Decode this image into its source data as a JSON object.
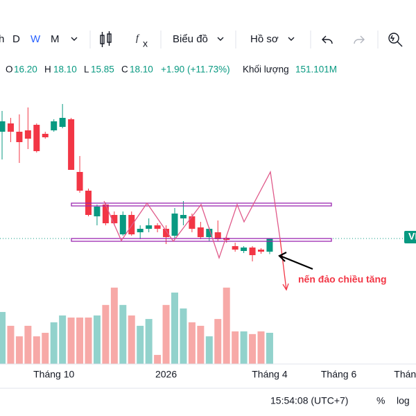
{
  "toolbar": {
    "intervals": [
      "h",
      "D",
      "W",
      "M"
    ],
    "chart_menu": "Biểu đồ",
    "profile_menu": "Hồ sơ"
  },
  "legend": {
    "open_label": "O",
    "open": "16.20",
    "high_label": "H",
    "high": "18.10",
    "low_label": "L",
    "low": "15.85",
    "close_label": "C",
    "close": "18.10",
    "change": "+1.90",
    "change_pct": "(+11.73%)",
    "volume_label": "Khối lượng",
    "volume": "151.101M"
  },
  "annotation": "nến đảo chiều tăng",
  "price_tag": "VI",
  "status_bar": {
    "time": "15:54:08 (UTC+7)",
    "percent": "%",
    "log": "log"
  },
  "chart_data": {
    "type": "candlestick",
    "categories": [
      null,
      null,
      null,
      null,
      null,
      null,
      "Tháng 10",
      null,
      null,
      null,
      null,
      null,
      null,
      null,
      null,
      null,
      null,
      null,
      null,
      "2026",
      null,
      null,
      null,
      null,
      null,
      null,
      null,
      null,
      null,
      null,
      null,
      "Tháng 4",
      null,
      null,
      null,
      null,
      null,
      null,
      null,
      "Tháng 6",
      null,
      null,
      null,
      null,
      null,
      null,
      null,
      "Tháng"
    ],
    "open": [
      33.5,
      34.7,
      33.5,
      33.7,
      34.5,
      33.2,
      33.7,
      34.2,
      35.3,
      27.7,
      25.0,
      21.3,
      23.0,
      21.5,
      18.7,
      21.5,
      19.0,
      19.5,
      20.0,
      19.5,
      18.5,
      21.0,
      21.3,
      19.7,
      18.3,
      19.0,
      18.2,
      17.0,
      16.3,
      16.8,
      16.5,
      16.2,
      null,
      null,
      null,
      null,
      null,
      null,
      null,
      null,
      null,
      null,
      null,
      null,
      null,
      null,
      null,
      null
    ],
    "high": [
      36.5,
      35.5,
      36.0,
      37.0,
      34.7,
      33.5,
      35.3,
      37.5,
      35.5,
      30.0,
      25.3,
      23.0,
      23.3,
      22.0,
      22.0,
      22.0,
      20.0,
      21.0,
      20.3,
      20.0,
      22.5,
      23.5,
      21.7,
      20.5,
      19.7,
      20.7,
      18.5,
      17.5,
      17.0,
      17.0,
      16.7,
      18.1,
      null,
      null,
      null,
      null,
      null,
      null,
      null,
      null,
      null,
      null,
      null,
      null,
      null,
      null,
      null,
      null
    ],
    "low": [
      29.5,
      32.0,
      29.0,
      31.0,
      30.5,
      32.5,
      33.5,
      34.0,
      28.0,
      24.7,
      21.3,
      20.0,
      20.0,
      20.0,
      18.5,
      18.5,
      18.0,
      19.0,
      19.0,
      17.3,
      18.0,
      20.0,
      19.0,
      18.0,
      17.7,
      17.7,
      17.5,
      16.2,
      16.0,
      14.8,
      15.9,
      15.85,
      null,
      null,
      null,
      null,
      null,
      null,
      null,
      null,
      null,
      null,
      null,
      null,
      null,
      null,
      null,
      null
    ],
    "close": [
      35.0,
      33.5,
      32.0,
      32.5,
      30.7,
      32.7,
      35.0,
      35.5,
      28.0,
      25.0,
      21.5,
      22.7,
      20.3,
      20.3,
      21.5,
      18.7,
      19.5,
      20.0,
      19.5,
      18.3,
      21.7,
      21.5,
      19.5,
      18.3,
      19.5,
      18.0,
      17.9,
      16.5,
      16.8,
      15.7,
      16.2,
      18.1,
      null,
      null,
      null,
      null,
      null,
      null,
      null,
      null,
      null,
      null,
      null,
      null,
      null,
      null,
      null,
      null
    ],
    "volume": [
      252,
      185,
      134,
      185,
      134,
      151,
      202,
      235,
      225,
      225,
      225,
      235,
      286,
      370,
      286,
      235,
      185,
      218,
      44,
      286,
      346,
      269,
      202,
      185,
      134,
      218,
      370,
      158,
      158,
      145,
      158,
      151.101,
      null,
      null,
      null,
      null,
      null,
      null,
      null,
      null,
      null,
      null,
      null,
      null,
      null,
      null,
      null,
      null
    ],
    "ylim": [
      0,
      41
    ],
    "volume_lim": [
      0,
      450
    ],
    "up_color": "#089981",
    "down_color": "#f23645",
    "volume_up_color": "#92d2cc",
    "volume_down_color": "#f7a9a7"
  }
}
